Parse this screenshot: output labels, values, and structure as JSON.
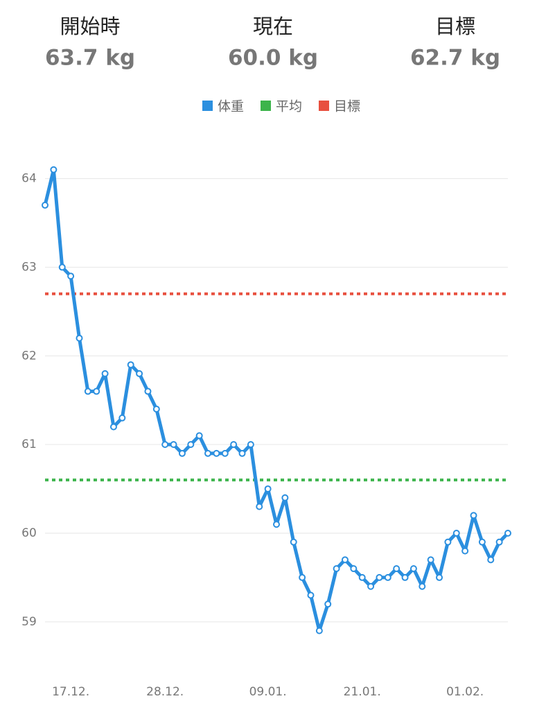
{
  "header": {
    "stats": [
      {
        "label": "開始時",
        "value": "63.7 kg"
      },
      {
        "label": "現在",
        "value": "60.0 kg",
        "color": "#2b8fdf"
      },
      {
        "label": "目標",
        "value": "62.7 kg"
      }
    ]
  },
  "chart_data": {
    "type": "line",
    "categories": [
      null,
      null,
      null,
      "17.12.",
      null,
      null,
      null,
      null,
      null,
      null,
      null,
      null,
      null,
      null,
      "28.12.",
      null,
      null,
      null,
      null,
      null,
      null,
      null,
      null,
      null,
      null,
      null,
      "09.01.",
      null,
      null,
      null,
      null,
      null,
      null,
      null,
      null,
      null,
      null,
      "21.01.",
      null,
      null,
      null,
      null,
      null,
      null,
      null,
      null,
      null,
      null,
      null,
      "01.02.",
      null,
      null,
      null,
      null,
      null
    ],
    "series": [
      {
        "name": "体重",
        "color": "#2b8fdf",
        "values": [
          63.7,
          64.1,
          63.0,
          62.9,
          62.2,
          61.6,
          61.6,
          61.8,
          61.2,
          61.3,
          61.9,
          61.8,
          61.6,
          61.4,
          61.0,
          61.0,
          60.9,
          61.0,
          61.1,
          60.9,
          60.9,
          60.9,
          61.0,
          60.9,
          61.0,
          60.3,
          60.5,
          60.1,
          60.4,
          59.9,
          59.5,
          59.3,
          58.9,
          59.2,
          59.6,
          59.7,
          59.6,
          59.5,
          59.4,
          59.5,
          59.5,
          59.6,
          59.5,
          59.6,
          59.4,
          59.7,
          59.5,
          59.9,
          60.0,
          59.8,
          60.2,
          59.9,
          59.7,
          59.9,
          60.0
        ]
      }
    ],
    "reference_lines": [
      {
        "name": "平均",
        "color": "#3cb44b",
        "value": 60.6
      },
      {
        "name": "目標",
        "color": "#e8503f",
        "value": 62.7
      }
    ],
    "ylim": [
      58.6,
      64.2
    ],
    "yticks": [
      59,
      60,
      61,
      62,
      63,
      64
    ],
    "grid": true
  }
}
